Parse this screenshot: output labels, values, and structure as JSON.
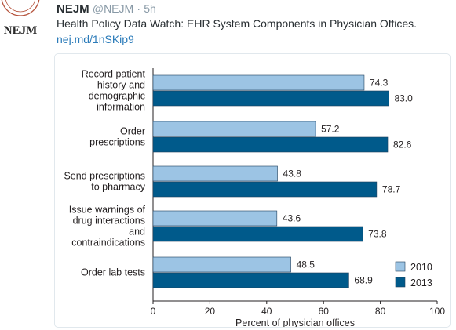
{
  "tweet": {
    "avatar_text": "NEJM",
    "name": "NEJM",
    "handle": "@NEJM",
    "separator": "·",
    "time": "5h",
    "text": "Health Policy Data Watch: EHR System Components in Physician Offices.",
    "link": "nej.md/1nSKip9"
  },
  "colors": {
    "series_2010": "#9cc4e4",
    "series_2013": "#005a8b",
    "bar_stroke": "#1f3f5c"
  },
  "chart_data": {
    "type": "bar",
    "orientation": "horizontal",
    "categories": [
      [
        "Record patient",
        "history and",
        "demographic",
        "information"
      ],
      [
        "Order",
        "prescriptions"
      ],
      [
        "Send prescriptions",
        "to pharmacy"
      ],
      [
        "Issue warnings of",
        "drug interactions",
        "and",
        "contraindications"
      ],
      [
        "Order lab tests"
      ]
    ],
    "series": [
      {
        "name": "2010",
        "values": [
          74.3,
          57.2,
          43.8,
          43.6,
          48.5
        ],
        "labels": [
          "74.3",
          "57.2",
          "43.8",
          "43.6",
          "48.5"
        ]
      },
      {
        "name": "2013",
        "values": [
          83.0,
          82.6,
          78.7,
          73.8,
          68.9
        ],
        "labels": [
          "83.0",
          "82.6",
          "78.7",
          "73.8",
          "68.9"
        ]
      }
    ],
    "xlabel": "Percent of physician offices",
    "xlim": [
      0,
      100
    ],
    "xticks": [
      0,
      20,
      40,
      60,
      80,
      100
    ],
    "grid": false,
    "legend_position": "bottom-right"
  }
}
